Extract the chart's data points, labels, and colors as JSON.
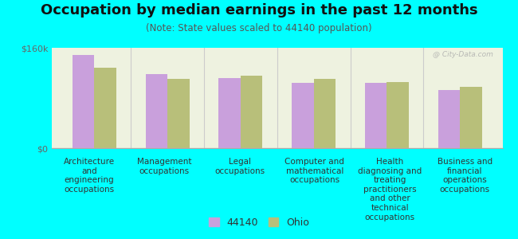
{
  "title": "Occupation by median earnings in the past 12 months",
  "subtitle": "(Note: State values scaled to 44140 population)",
  "background_color": "#00FFFF",
  "plot_bg_color": "#eef2e0",
  "categories": [
    "Architecture\nand\nengineering\noccupations",
    "Management\noccupations",
    "Legal\noccupations",
    "Computer and\nmathematical\noccupations",
    "Health\ndiagnosing and\ntreating\npractitioners\nand other\ntechnical\noccupations",
    "Business and\nfinancial\noperations\noccupations"
  ],
  "values_44140": [
    148000,
    118000,
    112000,
    104000,
    104000,
    93000
  ],
  "values_ohio": [
    128000,
    110000,
    116000,
    110000,
    106000,
    98000
  ],
  "color_44140": "#c9a0dc",
  "color_ohio": "#b8bf7a",
  "ylim": [
    0,
    160000
  ],
  "yticks": [
    0,
    160000
  ],
  "ytick_labels": [
    "$0",
    "$160k"
  ],
  "legend_label_44140": "44140",
  "legend_label_ohio": "Ohio",
  "watermark": "@ City-Data.com",
  "title_fontsize": 13,
  "subtitle_fontsize": 8.5,
  "tick_fontsize": 8,
  "axis_label_fontsize": 7.5
}
